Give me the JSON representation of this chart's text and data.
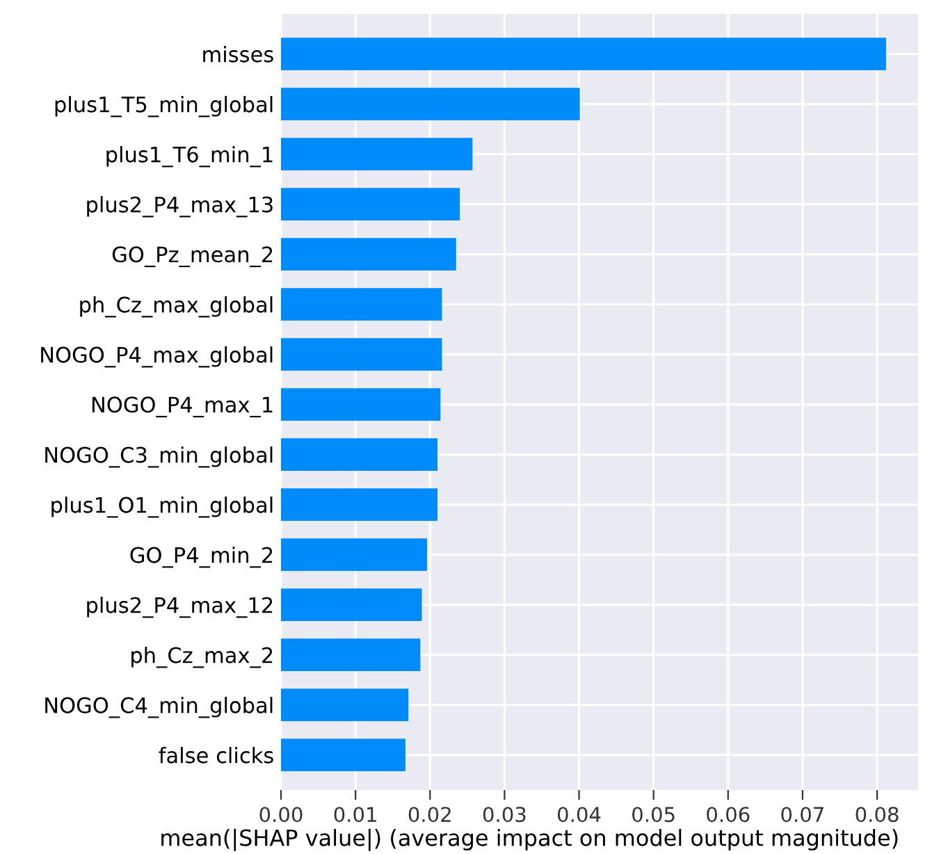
{
  "chart_data": {
    "type": "bar",
    "orientation": "horizontal",
    "categories": [
      "misses",
      "plus1_T5_min_global",
      "plus1_T6_min_1",
      "plus2_P4_max_13",
      "GO_Pz_mean_2",
      "ph_Cz_max_global",
      "NOGO_P4_max_global",
      "NOGO_P4_max_1",
      "NOGO_C3_min_global",
      "plus1_O1_min_global",
      "GO_P4_min_2",
      "plus2_P4_max_12",
      "ph_Cz_max_2",
      "NOGO_C4_min_global",
      "false clicks"
    ],
    "values": [
      0.0812,
      0.0401,
      0.0257,
      0.024,
      0.0235,
      0.0216,
      0.0216,
      0.0214,
      0.021,
      0.021,
      0.0196,
      0.0189,
      0.0187,
      0.0171,
      0.0167
    ],
    "color": "#008bfb",
    "xlabel": "mean(|SHAP value|) (average impact on model output magnitude)",
    "xlim": [
      0,
      0.0855
    ],
    "xticks": [
      {
        "value": 0,
        "label": "0.00"
      },
      {
        "value": 0.01,
        "label": "0.01"
      },
      {
        "value": 0.02,
        "label": "0.02"
      },
      {
        "value": 0.03,
        "label": "0.03"
      },
      {
        "value": 0.04,
        "label": "0.04"
      },
      {
        "value": 0.05,
        "label": "0.05"
      },
      {
        "value": 0.06,
        "label": "0.06"
      },
      {
        "value": 0.07,
        "label": "0.07"
      },
      {
        "value": 0.08,
        "label": "0.08"
      }
    ],
    "grid": true
  }
}
